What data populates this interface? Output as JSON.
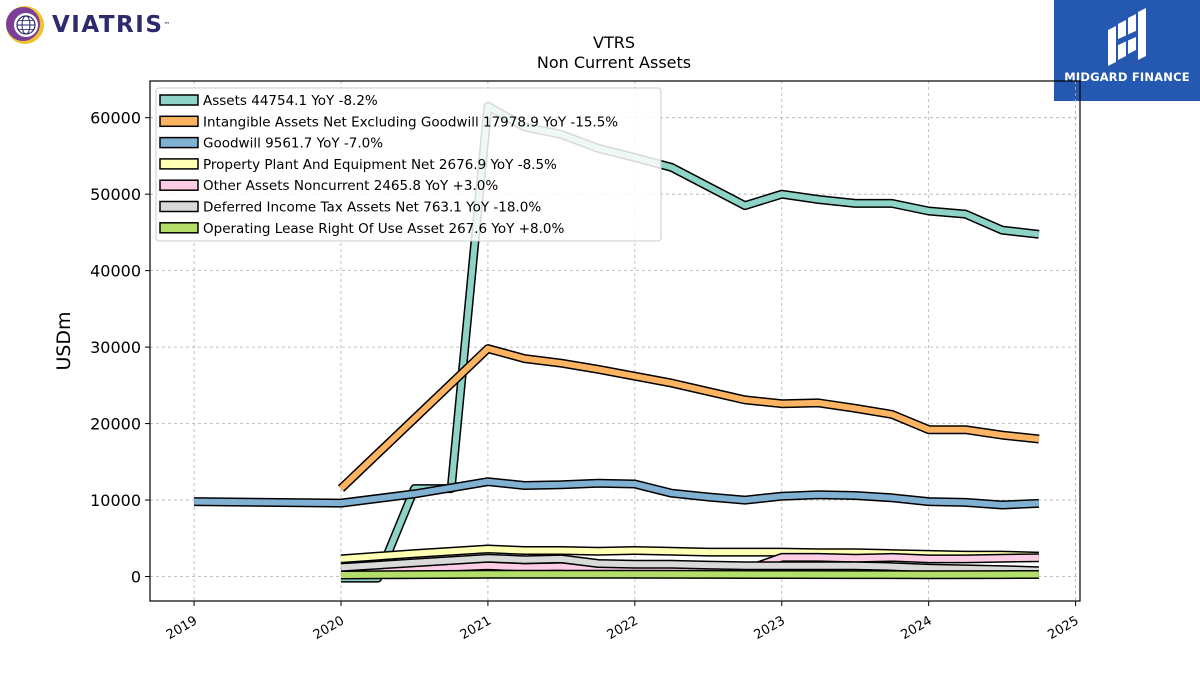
{
  "logos": {
    "left_text": "VIATRIS",
    "left_tm": "™",
    "right_text": "MIDGARD FINANCE"
  },
  "chart_data": {
    "type": "line",
    "title": "VTRS",
    "subtitle": "Non Current  Assets",
    "ylabel": "USDm",
    "xlabel": "",
    "xlim": [
      2018.7,
      2025.03
    ],
    "ylim": [
      -3200,
      64800
    ],
    "yticks": [
      0,
      10000,
      20000,
      30000,
      40000,
      50000,
      60000
    ],
    "xticks": [
      2019,
      2020,
      2021,
      2022,
      2023,
      2024,
      2025
    ],
    "grid": true,
    "legend_position": "upper left",
    "series": [
      {
        "name": "Assets",
        "legend": "Assets  44754.1 YoY -8.2%",
        "color": "#8dd3c7",
        "x": [
          2020.0,
          2020.25,
          2020.5,
          2020.75,
          2021.0,
          2021.25,
          2021.5,
          2021.75,
          2022.0,
          2022.25,
          2022.5,
          2022.75,
          2023.0,
          2023.25,
          2023.5,
          2023.75,
          2024.0,
          2024.25,
          2024.5,
          2024.75
        ],
        "values": [
          -200,
          -200,
          11500,
          11500,
          61500,
          58800,
          57800,
          56000,
          54800,
          53500,
          51000,
          48500,
          50000,
          49300,
          48800,
          48800,
          47800,
          47400,
          45300,
          44754.1
        ]
      },
      {
        "name": "Intangible Assets Net Excluding Goodwill",
        "legend": "Intangible Assets Net Excluding Goodwill  17978.9 YoY -15.5%",
        "color": "#fdb462",
        "x": [
          2020.0,
          2021.0,
          2021.25,
          2021.5,
          2021.75,
          2022.0,
          2022.25,
          2022.5,
          2022.75,
          2023.0,
          2023.25,
          2023.5,
          2023.75,
          2024.0,
          2024.25,
          2024.5,
          2024.75
        ],
        "values": [
          11500,
          29800,
          28500,
          27900,
          27100,
          26200,
          25300,
          24200,
          23100,
          22600,
          22700,
          22000,
          21200,
          19200,
          19200,
          18500,
          17978.9
        ]
      },
      {
        "name": "Goodwill",
        "legend": "Goodwill  9561.7 YoY -7.0%",
        "color": "#80b1d3",
        "x": [
          2019.0,
          2020.0,
          2020.5,
          2021.0,
          2021.25,
          2021.5,
          2021.75,
          2022.0,
          2022.25,
          2022.5,
          2022.75,
          2023.0,
          2023.25,
          2023.5,
          2023.75,
          2024.0,
          2024.25,
          2024.5,
          2024.75
        ],
        "values": [
          9800,
          9600,
          10800,
          12400,
          11900,
          12000,
          12200,
          12100,
          10900,
          10400,
          10000,
          10500,
          10700,
          10600,
          10300,
          9800,
          9700,
          9350,
          9561.7
        ]
      },
      {
        "name": "Property Plant And Equipment Net",
        "legend": "Property Plant And Equipment Net  2676.9 YoY -8.5%",
        "color": "#ffffb3",
        "x": [
          2020.0,
          2020.5,
          2021.0,
          2021.25,
          2021.5,
          2021.75,
          2022.0,
          2022.25,
          2022.5,
          2022.75,
          2023.0,
          2023.25,
          2023.5,
          2023.75,
          2024.0,
          2024.25,
          2024.5,
          2024.75
        ],
        "values": [
          2300,
          3000,
          3600,
          3400,
          3400,
          3300,
          3400,
          3300,
          3200,
          3200,
          3200,
          3100,
          3100,
          3000,
          2900,
          2800,
          2800,
          2676.9
        ]
      },
      {
        "name": "Other Assets Noncurrent",
        "legend": "Other Assets Noncurrent  2465.8 YoY +3.0%",
        "color": "#fccde5",
        "x": [
          2020.0,
          2020.5,
          2021.0,
          2021.25,
          2021.5,
          2021.75,
          2022.0,
          2022.25,
          2022.5,
          2022.75,
          2023.0,
          2023.25,
          2023.5,
          2023.75,
          2024.0,
          2024.25,
          2024.5,
          2024.75
        ],
        "values": [
          800,
          1000,
          1400,
          1200,
          1300,
          800,
          800,
          800,
          800,
          800,
          2500,
          2500,
          2400,
          2500,
          2300,
          2300,
          2400,
          2465.8
        ]
      },
      {
        "name": "Deferred Income Tax Assets Net",
        "legend": "Deferred Income Tax Assets Net  763.1 YoY -18.0%",
        "color": "#d9d9d9",
        "x": [
          2020.0,
          2020.5,
          2021.0,
          2021.25,
          2021.5,
          2021.75,
          2022.0,
          2022.25,
          2022.5,
          2022.75,
          2023.0,
          2023.25,
          2023.5,
          2023.75,
          2024.0,
          2024.25,
          2024.5,
          2024.75
        ],
        "values": [
          1200,
          1800,
          2400,
          2200,
          2300,
          1700,
          1600,
          1600,
          1500,
          1400,
          1400,
          1400,
          1400,
          1300,
          1100,
          1000,
          900,
          763.1
        ]
      },
      {
        "name": "Operating Lease Right Of Use Asset",
        "legend": "Operating Lease Right Of Use Asset  267.6 YoY +8.0%",
        "color": "#b3de69",
        "x": [
          2020.0,
          2020.5,
          2021.0,
          2021.5,
          2022.0,
          2022.5,
          2023.0,
          2023.5,
          2024.0,
          2024.5,
          2024.75
        ],
        "values": [
          200,
          250,
          300,
          300,
          300,
          280,
          260,
          250,
          240,
          250,
          267.6
        ]
      }
    ]
  }
}
